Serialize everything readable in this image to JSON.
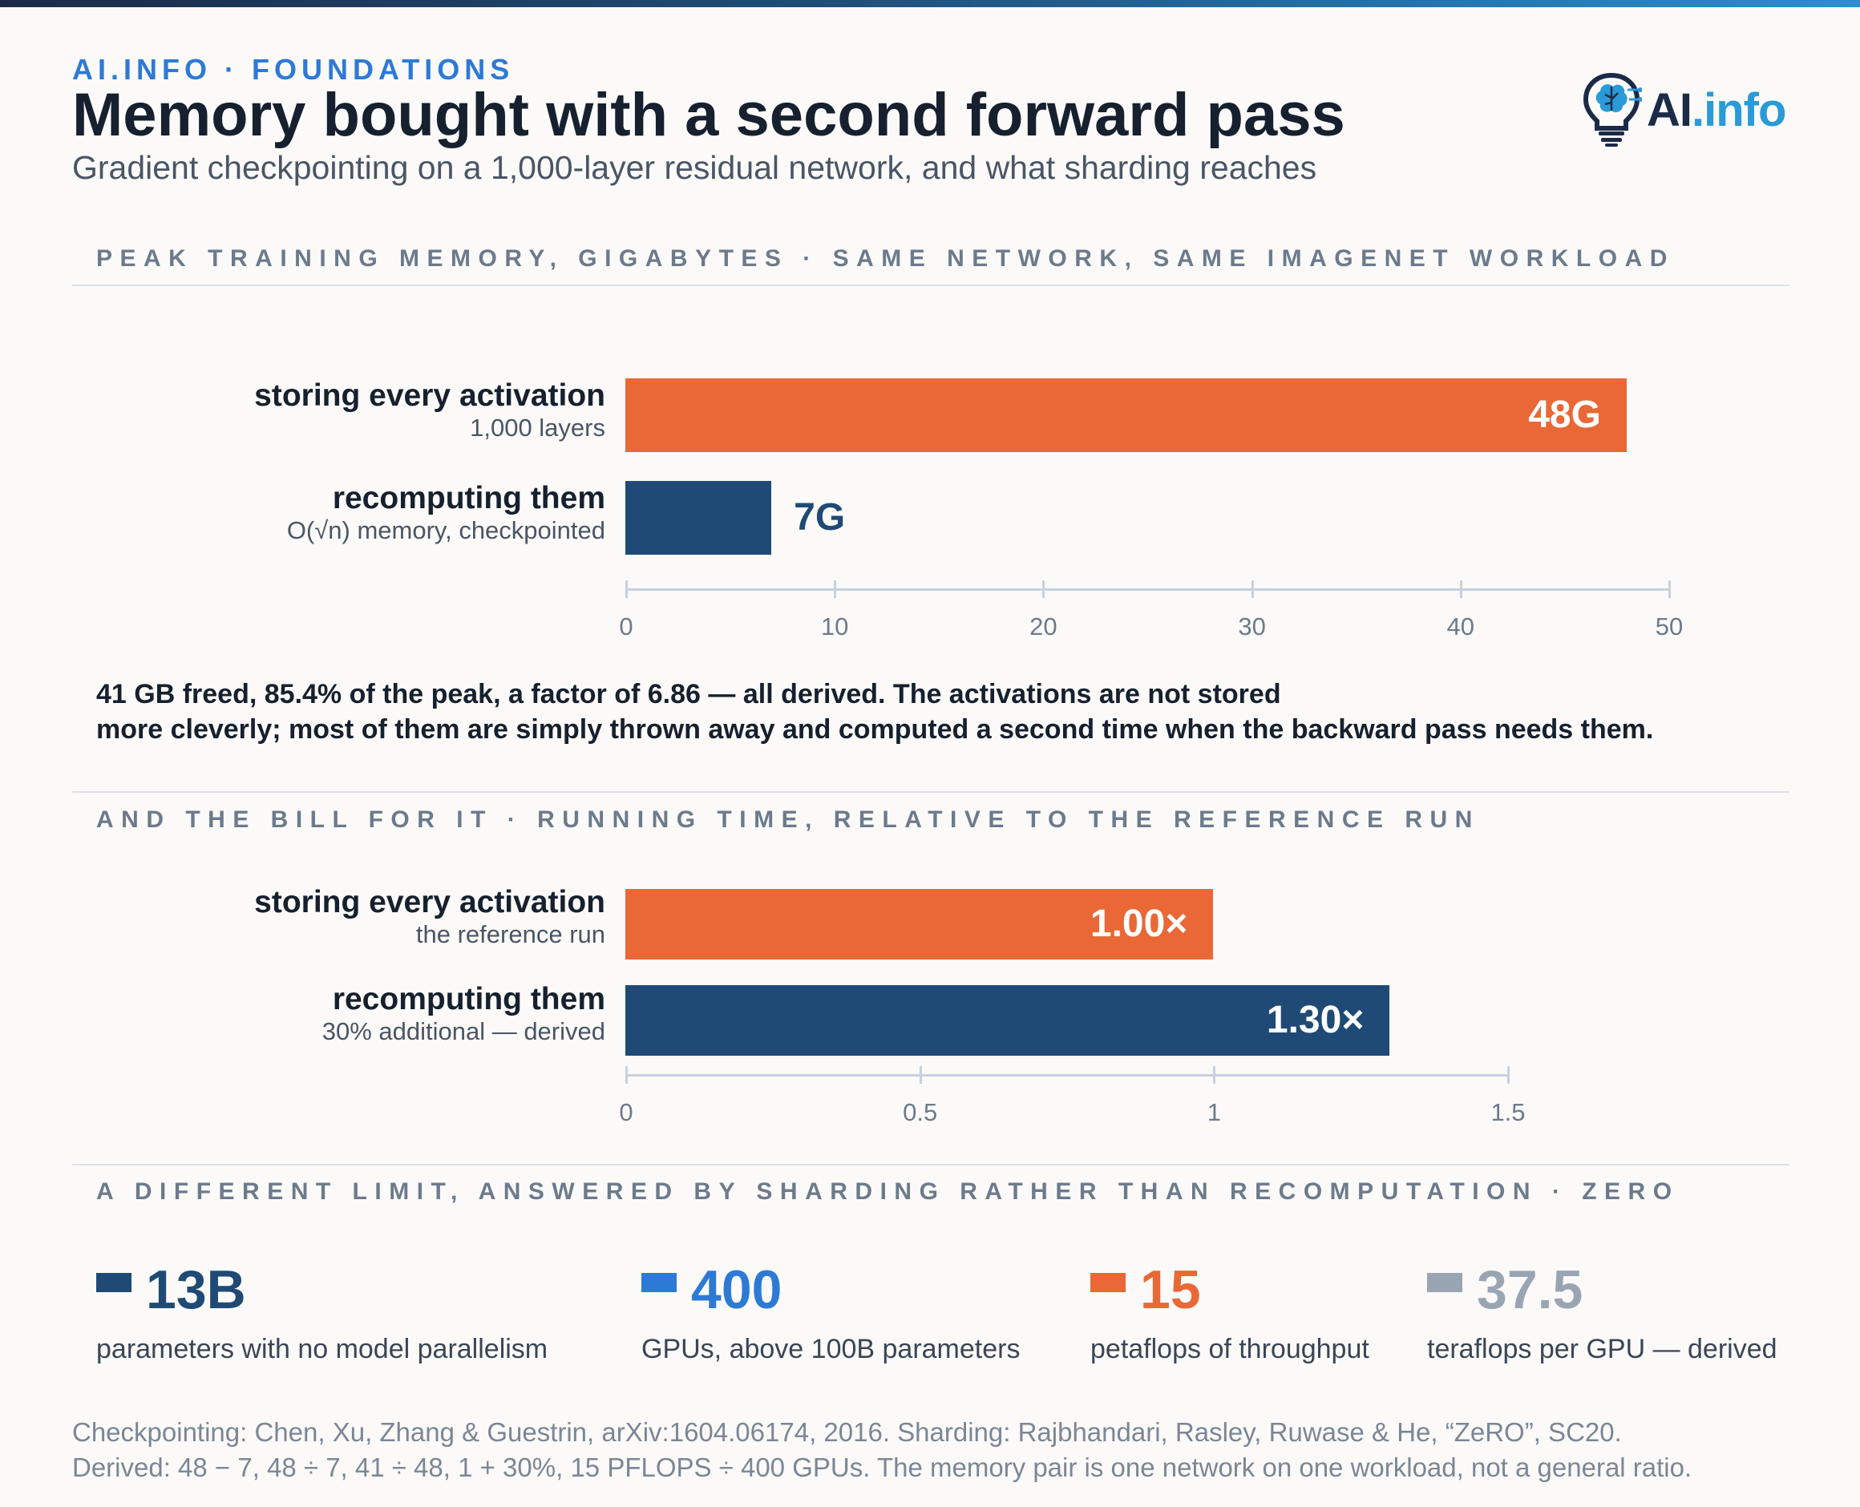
{
  "header": {
    "kicker": "AI.INFO · FOUNDATIONS",
    "title": "Memory bought with a second forward pass",
    "subtitle": "Gradient checkpointing on a 1,000-layer residual network, and what sharding reaches",
    "logo_ai": "AI",
    "logo_info": ".info"
  },
  "colors": {
    "accent_orange": "#e96835",
    "accent_navy": "#1f4a75",
    "accent_blue": "#2d7ad6",
    "accent_grey": "#9aa5b3"
  },
  "sections": {
    "memory_label": "PEAK TRAINING MEMORY, GIGABYTES · SAME NETWORK, SAME IMAGENET WORKLOAD",
    "time_label": "AND THE BILL FOR IT · RUNNING TIME, RELATIVE TO THE REFERENCE RUN",
    "sharding_label": "A DIFFERENT LIMIT, ANSWERED BY SHARDING RATHER THAN RECOMPUTATION · ZERO"
  },
  "chart_data": [
    {
      "type": "bar",
      "orientation": "horizontal",
      "title": "PEAK TRAINING MEMORY, GIGABYTES · SAME NETWORK, SAME IMAGENET WORKLOAD",
      "categories": [
        {
          "name": "storing every activation",
          "sub": "1,000 layers",
          "value": 48,
          "label": "48G",
          "color": "#e96835",
          "label_inside": true
        },
        {
          "name": "recomputing them",
          "sub": "O(√n) memory, checkpointed",
          "value": 7,
          "label": "7G",
          "color": "#1f4a75",
          "label_inside": false
        }
      ],
      "xlim": [
        0,
        50
      ],
      "ticks": [
        "0",
        "10",
        "20",
        "30",
        "40",
        "50"
      ],
      "tick_values": [
        0,
        10,
        20,
        30,
        40,
        50
      ]
    },
    {
      "type": "bar",
      "orientation": "horizontal",
      "title": "AND THE BILL FOR IT · RUNNING TIME, RELATIVE TO THE REFERENCE RUN",
      "categories": [
        {
          "name": "storing every activation",
          "sub": "the reference run",
          "value": 1.0,
          "label": "1.00×",
          "color": "#e96835",
          "label_inside": true
        },
        {
          "name": "recomputing them",
          "sub": "30% additional — derived",
          "value": 1.3,
          "label": "1.30×",
          "color": "#1f4a75",
          "label_inside": true
        }
      ],
      "xlim": [
        0,
        1.5
      ],
      "ticks": [
        "0",
        "0.5",
        "1",
        "1.5"
      ],
      "tick_values": [
        0,
        0.5,
        1,
        1.5
      ]
    }
  ],
  "note": {
    "line1": "41 GB freed, 85.4% of the peak, a factor of 6.86 — all derived. The activations are not stored",
    "line2": "more cleverly; most of them are simply thrown away and computed a second time when the backward pass needs them."
  },
  "stats": [
    {
      "value": "13B",
      "desc": "parameters with no model parallelism",
      "color": "#1f4a75"
    },
    {
      "value": "400",
      "desc": "GPUs, above 100B parameters",
      "color": "#2d7ad6"
    },
    {
      "value": "15",
      "desc": "petaflops of throughput",
      "color": "#e96835"
    },
    {
      "value": "37.5",
      "desc": "teraflops per GPU — derived",
      "color": "#9aa5b3"
    }
  ],
  "footer": {
    "line1": "Checkpointing: Chen, Xu, Zhang & Guestrin, arXiv:1604.06174, 2016. Sharding: Rajbhandari, Rasley, Ruwase & He, “ZeRO”, SC20.",
    "line2": "Derived: 48 − 7, 48 ÷ 7, 41 ÷ 48, 1 + 30%, 15 PFLOPS ÷ 400 GPUs. The memory pair is one network on one workload, not a general ratio."
  }
}
